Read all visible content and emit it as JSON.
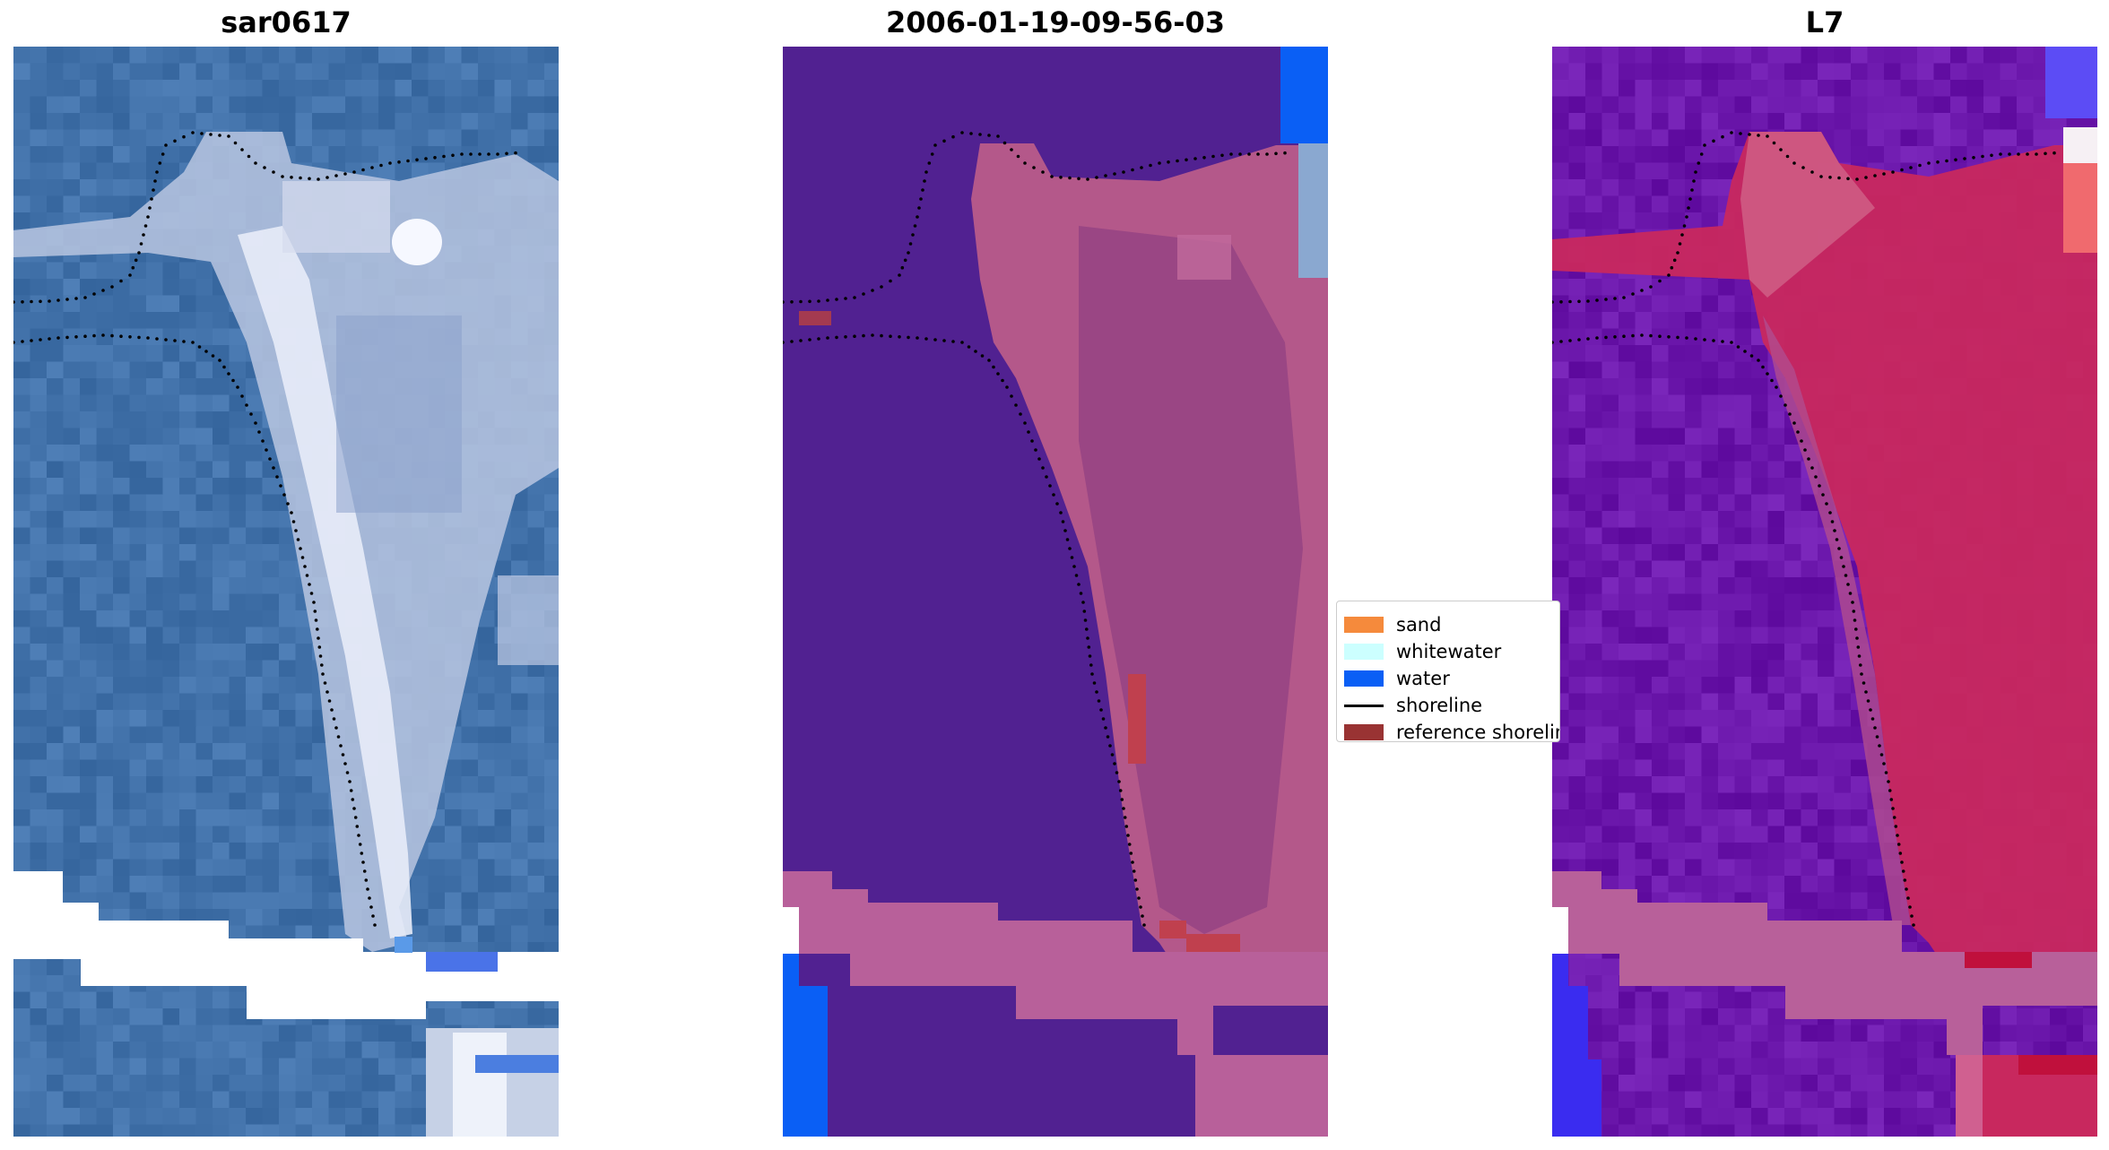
{
  "panels": [
    {
      "title": "sar0617",
      "style": "rgb"
    },
    {
      "title": "2006-01-19-09-56-03",
      "style": "classified"
    },
    {
      "title": "L7",
      "style": "index"
    }
  ],
  "legend": {
    "items": [
      {
        "label": "sand",
        "color": "#f58a3c",
        "kind": "patch"
      },
      {
        "label": "whitewater",
        "color": "#ccffff",
        "kind": "patch"
      },
      {
        "label": "water",
        "color": "#0a5ff5",
        "kind": "patch"
      },
      {
        "label": "shoreline",
        "color": "#000000",
        "kind": "line"
      },
      {
        "label": "reference shoreline",
        "color": "#993333",
        "kind": "patch"
      }
    ]
  },
  "colors": {
    "water_rgb": "#3e6fa6",
    "sand_rgb": "#c8d6ec",
    "classified_water": "#512191",
    "classified_land": "#b4588a",
    "mask_pink": "#b8609a",
    "index_water": "#6a10b0",
    "index_land": "#c8285e"
  }
}
